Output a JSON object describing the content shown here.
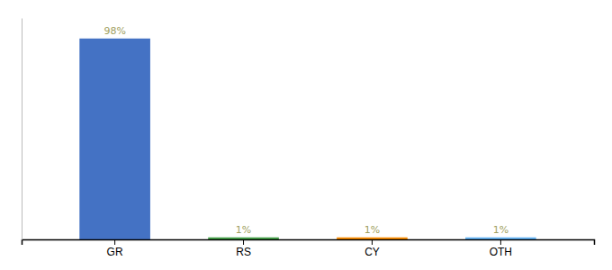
{
  "chart_data": {
    "type": "bar",
    "categories": [
      "GR",
      "RS",
      "CY",
      "OTH"
    ],
    "values": [
      98,
      1,
      1,
      1
    ],
    "value_labels": [
      "98%",
      "1%",
      "1%",
      "1%"
    ],
    "colors": [
      "#4472c4",
      "#43a047",
      "#fb8c00",
      "#64b5f6"
    ],
    "ylim": [
      0,
      108
    ],
    "grid": false,
    "data_labels": true,
    "tick_labels": "x"
  }
}
